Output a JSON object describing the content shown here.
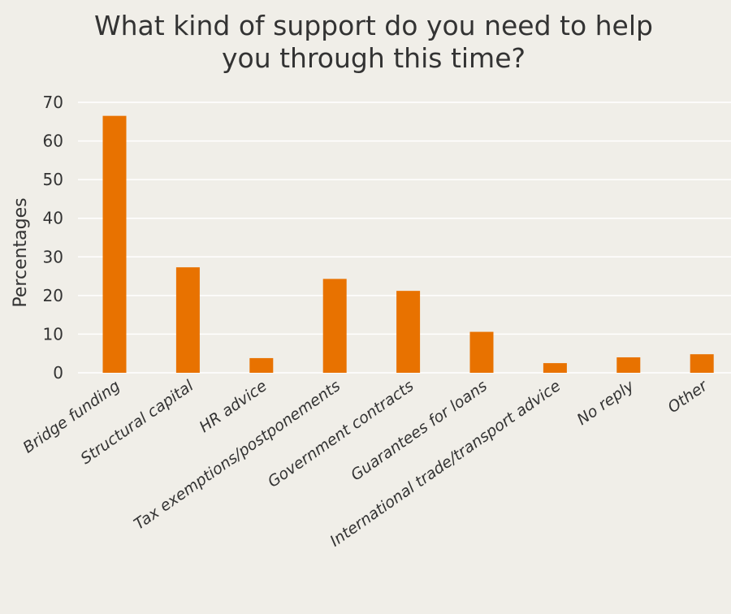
{
  "chart_data": {
    "type": "bar",
    "title_lines": [
      "What kind of support do you need to help",
      "you through this time?"
    ],
    "xlabel": "",
    "ylabel": "Percentages",
    "ylim": [
      0,
      70
    ],
    "yticks": [
      0,
      10,
      20,
      30,
      40,
      50,
      60,
      70
    ],
    "grid": true,
    "legend": "none",
    "categories": [
      "Bridge funding",
      "Structural capital",
      "HR advice",
      "Tax exemptions/postponements",
      "Government contracts",
      "Guarantees for loans",
      "International trade/transport advice",
      "No reply",
      "Other"
    ],
    "values": [
      66.5,
      27.3,
      3.8,
      24.3,
      21.2,
      10.6,
      2.5,
      4.0,
      4.8
    ],
    "bar_color": "#e87200",
    "grid_color": "#ffffff",
    "background_color": "#f0eee8"
  }
}
